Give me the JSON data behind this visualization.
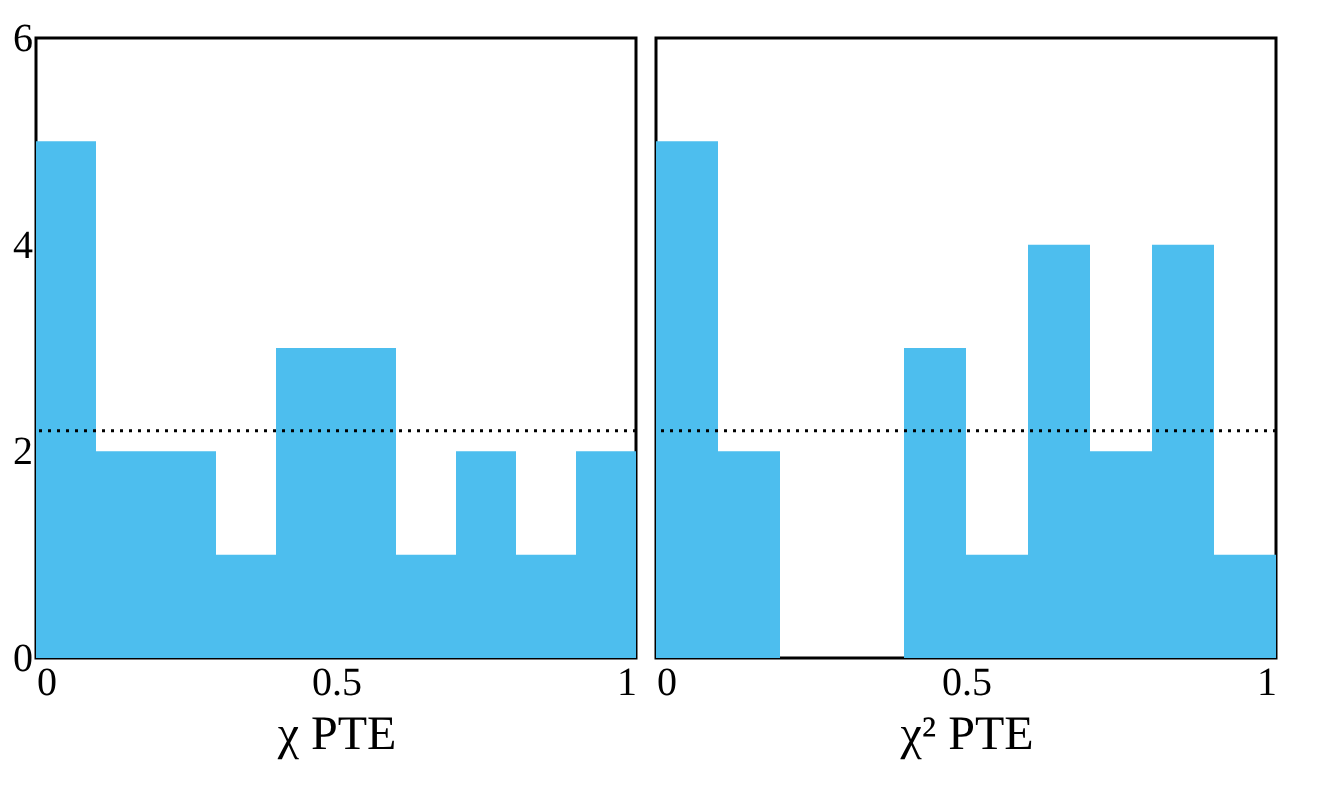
{
  "chart_data": [
    {
      "type": "histogram",
      "xlabel": "χ PTE",
      "bins": [
        0,
        0.1,
        0.2,
        0.3,
        0.4,
        0.5,
        0.6,
        0.7,
        0.8,
        0.9,
        1
      ],
      "values": [
        5,
        2,
        2,
        1,
        3,
        3,
        1,
        2,
        1,
        2
      ],
      "color": "#4dbeee",
      "xlim": [
        0,
        1
      ],
      "xticks": [
        0,
        0.5,
        1
      ],
      "ylim": [
        0,
        6
      ],
      "yticks": [
        0,
        2,
        4,
        6
      ],
      "grid": false,
      "ref_lines": [
        {
          "axis": "y",
          "value": 2.2,
          "line_style": "dotted",
          "color": "#000000"
        }
      ]
    },
    {
      "type": "histogram",
      "xlabel": "χ² PTE",
      "bins": [
        0,
        0.1,
        0.2,
        0.3,
        0.4,
        0.5,
        0.6,
        0.7,
        0.8,
        0.9,
        1
      ],
      "values": [
        5,
        2,
        0,
        0,
        3,
        1,
        4,
        2,
        4,
        1
      ],
      "color": "#4dbeee",
      "xlim": [
        0,
        1
      ],
      "xticks": [
        0,
        0.5,
        1
      ],
      "ylim": [
        0,
        6
      ],
      "yticks": [
        0,
        2,
        4,
        6
      ],
      "tick_labels": "x",
      "grid": false,
      "ref_lines": [
        {
          "axis": "y",
          "value": 2.2,
          "line_style": "dotted",
          "color": "#000000"
        }
      ]
    }
  ]
}
